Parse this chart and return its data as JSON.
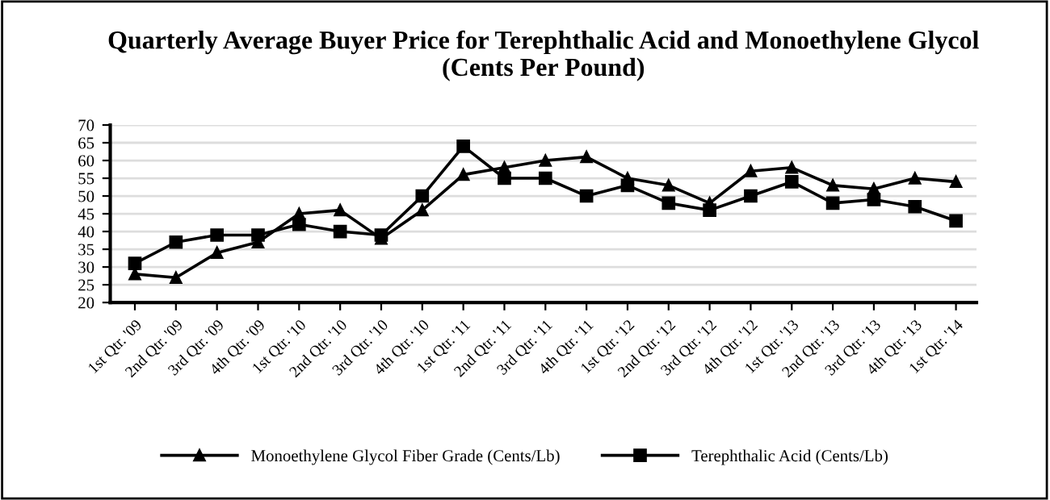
{
  "chart_data": {
    "type": "line",
    "title": "Quarterly Average Buyer Price for Terephthalic Acid and Monoethylene Glycol\n(Cents Per Pound)",
    "categories": [
      "1st Qtr. '09",
      "2nd Qtr. '09",
      "3rd Qtr. '09",
      "4th Qtr. '09",
      "1st Qtr. '10",
      "2nd Qtr. '10",
      "3rd Qtr. '10",
      "4th Qtr. '10",
      "1st Qtr. '11",
      "2nd Qtr. '11",
      "3rd Qtr. '11",
      "4th Qtr. '11",
      "1st Qtr. '12",
      "2nd Qtr. '12",
      "3rd Qtr. '12",
      "4th Qtr. '12",
      "1st Qtr. '13",
      "2nd Qtr. '13",
      "3rd Qtr. '13",
      "4th Qtr. '13",
      "1st Qtr. '14"
    ],
    "series": [
      {
        "name": "Monoethylene Glycol Fiber Grade (Cents/Lb)",
        "color": "#000000",
        "marker": "triangle",
        "values": [
          28,
          27,
          34,
          37,
          45,
          46,
          38,
          46,
          56,
          58,
          60,
          61,
          55,
          53,
          48,
          57,
          58,
          53,
          52,
          55,
          54
        ]
      },
      {
        "name": "Terephthalic Acid (Cents/Lb)",
        "color": "#000000",
        "marker": "square",
        "values": [
          31,
          37,
          39,
          39,
          42,
          40,
          39,
          50,
          64,
          55,
          55,
          50,
          53,
          48,
          46,
          50,
          54,
          48,
          49,
          47,
          43
        ]
      }
    ],
    "ylim": [
      20,
      70
    ],
    "yticks": [
      20,
      25,
      30,
      35,
      40,
      45,
      50,
      55,
      60,
      65,
      70
    ],
    "grid": "y",
    "legend": "bottom",
    "line_style": "solid"
  }
}
